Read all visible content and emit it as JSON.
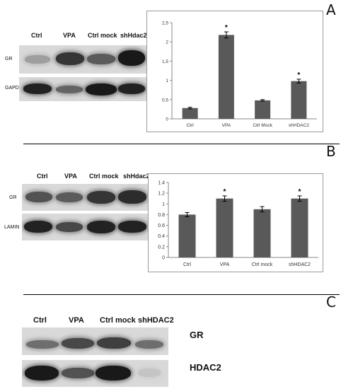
{
  "panels": {
    "a": {
      "letter": "A",
      "lanes": [
        "Ctrl",
        "VPA",
        "Ctrl mock",
        "shHdac2"
      ],
      "rows": [
        "GR",
        "GAPDH"
      ],
      "band_intensity": {
        "GR": [
          0.25,
          0.8,
          0.6,
          0.95
        ],
        "GAPDH": [
          0.9,
          0.55,
          0.95,
          0.9
        ]
      }
    },
    "b": {
      "letter": "B",
      "lanes": [
        "Ctrl",
        "VPA",
        "Ctrl mock",
        "shHdac2"
      ],
      "rows": [
        "GR",
        "LAMIN"
      ],
      "band_intensity": {
        "GR": [
          0.65,
          0.6,
          0.8,
          0.85
        ],
        "LAMIN": [
          0.9,
          0.7,
          0.9,
          0.9
        ]
      }
    },
    "c": {
      "letter": "C",
      "lanes": [
        "Ctrl",
        "VPA",
        "Ctrl mock",
        "shHDAC2"
      ],
      "rows": [
        "GR",
        "HDAC2"
      ],
      "band_intensity": {
        "GR": [
          0.5,
          0.7,
          0.75,
          0.5
        ],
        "HDAC2": [
          0.95,
          0.65,
          0.95,
          0.05
        ]
      }
    }
  },
  "chart_data": [
    {
      "type": "bar",
      "panel": "A",
      "categories": [
        "Ctrl",
        "VPA",
        "Ctrl Mock",
        "shHDAC2"
      ],
      "values": [
        0.28,
        2.18,
        0.48,
        0.98
      ],
      "errors": [
        0.02,
        0.08,
        0.02,
        0.05
      ],
      "significant": [
        false,
        true,
        false,
        true
      ],
      "significance_marker": "*",
      "ylim": [
        0,
        2.5
      ],
      "yticks": [
        "0",
        "0,5",
        "1",
        "1,5",
        "2",
        "2,5"
      ],
      "ytick_values": [
        0,
        0.5,
        1,
        1.5,
        2,
        2.5
      ],
      "grid": false,
      "bar_color": "#595959"
    },
    {
      "type": "bar",
      "panel": "B",
      "categories": [
        "Ctrl",
        "VPA",
        "Ctrl mock",
        "shHDAC2"
      ],
      "values": [
        0.8,
        1.1,
        0.9,
        1.1
      ],
      "errors": [
        0.04,
        0.05,
        0.05,
        0.05
      ],
      "significant": [
        false,
        true,
        false,
        true
      ],
      "significance_marker": "*",
      "ylim": [
        0,
        1.4
      ],
      "yticks": [
        "0",
        "0.2",
        "0.4",
        "0.6",
        "0.8",
        "1",
        "1.2",
        "1.4"
      ],
      "ytick_values": [
        0,
        0.2,
        0.4,
        0.6,
        0.8,
        1,
        1.2,
        1.4
      ],
      "grid": false,
      "bar_color": "#595959"
    }
  ]
}
